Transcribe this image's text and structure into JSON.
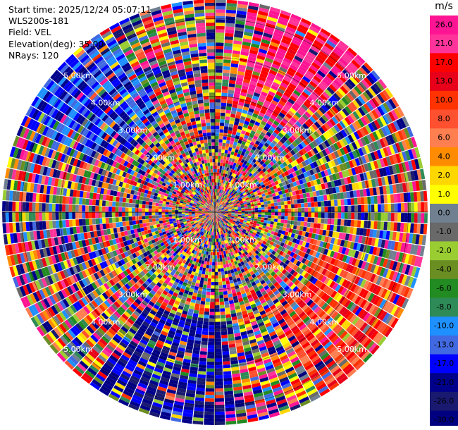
{
  "header": {
    "start_time": "Start time: 2025/12/24 05:07:11",
    "site": "WLS200s-181",
    "field": "Field: VEL",
    "elevation": "Elevation(deg): 35.00",
    "nrays": "NRays: 120"
  },
  "chart_data": {
    "type": "heatmap",
    "projection": "polar",
    "field": "VEL",
    "n_rays": 120,
    "range_ring_labels": [
      "1.00km",
      "2.00km",
      "3.00km",
      "4.00km",
      "5.00km"
    ],
    "range_rings_km": [
      1,
      2,
      3,
      4,
      5
    ],
    "max_range_km": 5.5,
    "colorbar": {
      "unit": "m/s",
      "tick_labels": [
        "26.0",
        "21.0",
        "17.0",
        "13.0",
        "10.0",
        "8.0",
        "6.0",
        "4.0",
        "2.0",
        "1.0",
        "0.0",
        "-1.0",
        "-2.0",
        "-4.0",
        "-6.0",
        "-8.0",
        "-10.0",
        "-13.0",
        "-17.0",
        "-21.0",
        "-26.0",
        "-30.0"
      ],
      "colors": [
        "#ff1493",
        "#ff3399",
        "#ff0000",
        "#e8001a",
        "#ff3300",
        "#ff5030",
        "#ff7f50",
        "#ff8c00",
        "#ffd700",
        "#ffff00",
        "#708090",
        "#696969",
        "#9acd32",
        "#6b8e23",
        "#228b22",
        "#2e8b57",
        "#1e90ff",
        "#4169e1",
        "#0000ff",
        "#00008b",
        "#191970",
        "#000080"
      ]
    },
    "notable_regions": [
      {
        "sector": "northeast",
        "range_km": "3-5",
        "velocity_ms": "21 to 26"
      },
      {
        "sector": "southeast",
        "range_km": "3-5",
        "velocity_ms": "10 to 21"
      },
      {
        "sector": "south-southwest",
        "range_km": "3-5",
        "velocity_ms": "-21 to -30"
      },
      {
        "sector": "northwest",
        "range_km": "3-5",
        "velocity_ms": "-10 to -26"
      }
    ]
  }
}
